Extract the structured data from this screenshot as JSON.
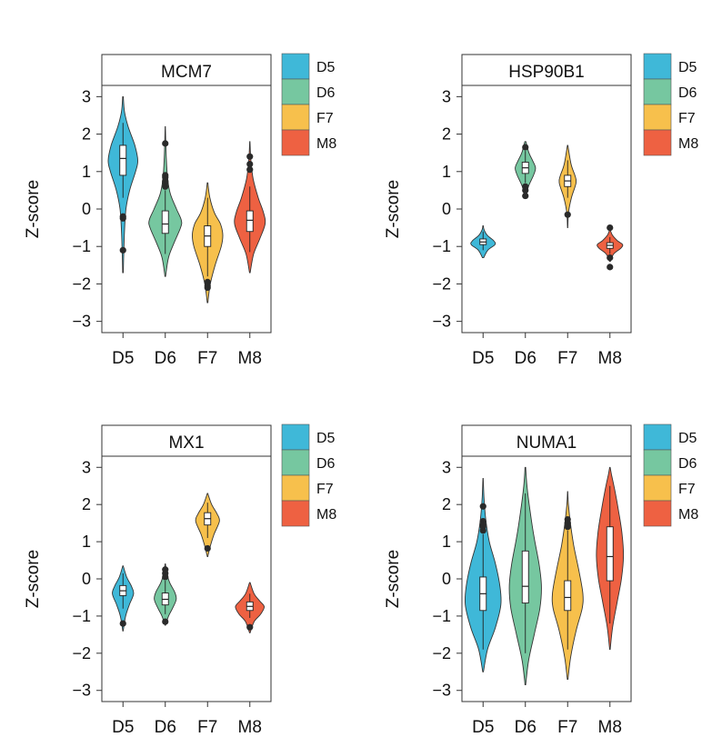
{
  "colors": {
    "D5": "#3fb8d8",
    "D6": "#76c7a0",
    "F7": "#f7c04c",
    "M8": "#ee6142",
    "outlier": "#2a2a2a"
  },
  "chart_data": [
    {
      "type": "violin",
      "title": "MCM7",
      "ylabel": "Z-score",
      "ylim": [
        -3.3,
        3.3
      ],
      "yticks": [
        3,
        2,
        1,
        0,
        -1,
        -2,
        -3
      ],
      "ytick_labels": [
        "3",
        "2",
        "1",
        "0",
        "−1",
        "−2",
        "−3"
      ],
      "categories": [
        "D5",
        "D6",
        "F7",
        "M8"
      ],
      "legend": [
        "D5",
        "D6",
        "F7",
        "M8"
      ],
      "series": [
        {
          "name": "D5",
          "min": -1.7,
          "max": 3.0,
          "width": 0.35,
          "density": [
            [
              -1.7,
              0.02
            ],
            [
              -1.2,
              0.05
            ],
            [
              -0.6,
              0.1
            ],
            [
              0,
              0.2
            ],
            [
              0.5,
              0.45
            ],
            [
              1,
              0.85
            ],
            [
              1.3,
              1
            ],
            [
              1.7,
              0.8
            ],
            [
              2.2,
              0.35
            ],
            [
              2.6,
              0.1
            ],
            [
              3.0,
              0.02
            ]
          ],
          "q1": 0.9,
          "median": 1.35,
          "q3": 1.7,
          "wmin": 0.3,
          "wmax": 2.3,
          "outliers": [
            -0.2,
            -0.25,
            -1.1
          ]
        },
        {
          "name": "D6",
          "min": -1.8,
          "max": 2.2,
          "width": 0.38,
          "density": [
            [
              -1.8,
              0.02
            ],
            [
              -1.3,
              0.2
            ],
            [
              -0.9,
              0.55
            ],
            [
              -0.5,
              0.95
            ],
            [
              -0.3,
              1
            ],
            [
              0,
              0.7
            ],
            [
              0.4,
              0.32
            ],
            [
              0.8,
              0.15
            ],
            [
              1.3,
              0.07
            ],
            [
              1.8,
              0.03
            ],
            [
              2.2,
              0.01
            ]
          ],
          "q1": -0.65,
          "median": -0.4,
          "q3": -0.05,
          "wmin": -1.2,
          "wmax": 0.5,
          "outliers": [
            0.6,
            0.7,
            0.75,
            0.85,
            0.9,
            1.75
          ]
        },
        {
          "name": "F7",
          "min": -2.5,
          "max": 0.7,
          "width": 0.36,
          "density": [
            [
              -2.5,
              0.02
            ],
            [
              -2.0,
              0.18
            ],
            [
              -1.5,
              0.5
            ],
            [
              -1.0,
              0.9
            ],
            [
              -0.7,
              1
            ],
            [
              -0.4,
              0.85
            ],
            [
              -0.1,
              0.45
            ],
            [
              0.3,
              0.15
            ],
            [
              0.7,
              0.02
            ]
          ],
          "q1": -1.0,
          "median": -0.72,
          "q3": -0.45,
          "wmin": -1.8,
          "wmax": 0.3,
          "outliers": [
            -1.95,
            -2.05,
            -2.1
          ]
        },
        {
          "name": "M8",
          "min": -1.7,
          "max": 1.8,
          "width": 0.36,
          "density": [
            [
              -1.7,
              0.02
            ],
            [
              -1.2,
              0.25
            ],
            [
              -0.8,
              0.65
            ],
            [
              -0.4,
              1
            ],
            [
              -0.1,
              0.9
            ],
            [
              0.3,
              0.55
            ],
            [
              0.8,
              0.22
            ],
            [
              1.3,
              0.07
            ],
            [
              1.8,
              0.01
            ]
          ],
          "q1": -0.6,
          "median": -0.3,
          "q3": -0.05,
          "wmin": -1.15,
          "wmax": 0.6,
          "outliers": [
            1.05,
            1.2,
            1.4
          ]
        }
      ]
    },
    {
      "type": "violin",
      "title": "HSP90B1",
      "ylabel": "Z-score",
      "ylim": [
        -3.3,
        3.3
      ],
      "yticks": [
        3,
        2,
        1,
        0,
        -1,
        -2,
        -3
      ],
      "ytick_labels": [
        "3",
        "2",
        "1",
        "0",
        "−1",
        "−2",
        "−3"
      ],
      "categories": [
        "D5",
        "D6",
        "F7",
        "M8"
      ],
      "legend": [
        "D5",
        "D6",
        "F7",
        "M8"
      ],
      "series": [
        {
          "name": "D5",
          "min": -1.3,
          "max": -0.45,
          "width": 0.28,
          "density": [
            [
              -1.3,
              0.05
            ],
            [
              -1.1,
              0.4
            ],
            [
              -0.95,
              1
            ],
            [
              -0.85,
              0.9
            ],
            [
              -0.7,
              0.35
            ],
            [
              -0.55,
              0.08
            ],
            [
              -0.45,
              0.02
            ]
          ],
          "q1": -0.95,
          "median": -0.88,
          "q3": -0.8,
          "wmin": -1.1,
          "wmax": -0.6,
          "outliers": []
        },
        {
          "name": "D6",
          "min": 0.3,
          "max": 1.8,
          "width": 0.24,
          "density": [
            [
              0.3,
              0.05
            ],
            [
              0.6,
              0.3
            ],
            [
              0.9,
              0.8
            ],
            [
              1.1,
              1
            ],
            [
              1.3,
              0.7
            ],
            [
              1.5,
              0.35
            ],
            [
              1.8,
              0.05
            ]
          ],
          "q1": 0.95,
          "median": 1.1,
          "q3": 1.25,
          "wmin": 0.7,
          "wmax": 1.55,
          "outliers": [
            0.35,
            0.5,
            0.6,
            1.65
          ]
        },
        {
          "name": "F7",
          "min": -0.5,
          "max": 1.7,
          "width": 0.2,
          "density": [
            [
              -0.5,
              0.02
            ],
            [
              -0.1,
              0.1
            ],
            [
              0.3,
              0.45
            ],
            [
              0.7,
              1
            ],
            [
              0.9,
              0.85
            ],
            [
              1.2,
              0.4
            ],
            [
              1.7,
              0.03
            ]
          ],
          "q1": 0.6,
          "median": 0.75,
          "q3": 0.9,
          "wmin": 0.3,
          "wmax": 1.3,
          "outliers": [
            -0.15
          ]
        },
        {
          "name": "M8",
          "min": -1.4,
          "max": -0.55,
          "width": 0.3,
          "density": [
            [
              -1.4,
              0.03
            ],
            [
              -1.2,
              0.3
            ],
            [
              -1.05,
              0.85
            ],
            [
              -0.95,
              1
            ],
            [
              -0.85,
              0.6
            ],
            [
              -0.7,
              0.2
            ],
            [
              -0.55,
              0.02
            ]
          ],
          "q1": -1.05,
          "median": -0.97,
          "q3": -0.9,
          "wmin": -1.2,
          "wmax": -0.75,
          "outliers": [
            -0.5,
            -1.3,
            -1.55
          ]
        }
      ]
    },
    {
      "type": "violin",
      "title": "MX1",
      "ylabel": "Z-score",
      "ylim": [
        -3.3,
        3.3
      ],
      "yticks": [
        3,
        2,
        1,
        0,
        -1,
        -2,
        -3
      ],
      "ytick_labels": [
        "3",
        "2",
        "1",
        "0",
        "−1",
        "−2",
        "−3"
      ],
      "categories": [
        "D5",
        "D6",
        "F7",
        "M8"
      ],
      "legend": [
        "D5",
        "D6",
        "F7",
        "M8"
      ],
      "series": [
        {
          "name": "D5",
          "min": -1.4,
          "max": 0.35,
          "width": 0.25,
          "density": [
            [
              -1.4,
              0.02
            ],
            [
              -1.0,
              0.25
            ],
            [
              -0.7,
              0.6
            ],
            [
              -0.4,
              1
            ],
            [
              -0.2,
              0.8
            ],
            [
              0.05,
              0.35
            ],
            [
              0.35,
              0.02
            ]
          ],
          "q1": -0.45,
          "median": -0.32,
          "q3": -0.18,
          "wmin": -0.8,
          "wmax": 0.15,
          "outliers": [
            -1.2
          ]
        },
        {
          "name": "D6",
          "min": -1.25,
          "max": 0.4,
          "width": 0.26,
          "density": [
            [
              -1.25,
              0.02
            ],
            [
              -1.0,
              0.3
            ],
            [
              -0.8,
              0.65
            ],
            [
              -0.55,
              1
            ],
            [
              -0.35,
              0.85
            ],
            [
              -0.1,
              0.4
            ],
            [
              0.2,
              0.1
            ],
            [
              0.4,
              0.02
            ]
          ],
          "q1": -0.7,
          "median": -0.55,
          "q3": -0.38,
          "wmin": -0.95,
          "wmax": -0.05,
          "outliers": [
            0.05,
            0.15,
            0.25,
            -1.15
          ]
        },
        {
          "name": "F7",
          "min": 0.6,
          "max": 2.3,
          "width": 0.28,
          "density": [
            [
              0.6,
              0.02
            ],
            [
              0.9,
              0.25
            ],
            [
              1.2,
              0.55
            ],
            [
              1.55,
              1
            ],
            [
              1.75,
              0.8
            ],
            [
              2.0,
              0.35
            ],
            [
              2.3,
              0.02
            ]
          ],
          "q1": 1.45,
          "median": 1.62,
          "q3": 1.78,
          "wmin": 1.1,
          "wmax": 2.05,
          "outliers": [
            0.82
          ]
        },
        {
          "name": "M8",
          "min": -1.45,
          "max": -0.1,
          "width": 0.34,
          "density": [
            [
              -1.45,
              0.02
            ],
            [
              -1.15,
              0.3
            ],
            [
              -0.95,
              0.75
            ],
            [
              -0.75,
              1
            ],
            [
              -0.6,
              0.7
            ],
            [
              -0.4,
              0.3
            ],
            [
              -0.1,
              0.02
            ]
          ],
          "q1": -0.85,
          "median": -0.74,
          "q3": -0.62,
          "wmin": -1.05,
          "wmax": -0.4,
          "outliers": [
            -1.3
          ]
        }
      ]
    },
    {
      "type": "violin",
      "title": "NUMA1",
      "ylabel": "Z-score",
      "ylim": [
        -3.3,
        3.3
      ],
      "yticks": [
        3,
        2,
        1,
        0,
        -1,
        -2,
        -3
      ],
      "ytick_labels": [
        "3",
        "2",
        "1",
        "0",
        "−1",
        "−2",
        "−3"
      ],
      "categories": [
        "D5",
        "D6",
        "F7",
        "M8"
      ],
      "legend": [
        "D5",
        "D6",
        "F7",
        "M8"
      ],
      "series": [
        {
          "name": "D5",
          "min": -2.5,
          "max": 2.7,
          "width": 0.42,
          "density": [
            [
              -2.5,
              0.02
            ],
            [
              -1.9,
              0.25
            ],
            [
              -1.3,
              0.7
            ],
            [
              -0.7,
              1
            ],
            [
              -0.2,
              0.95
            ],
            [
              0.4,
              0.7
            ],
            [
              1.0,
              0.35
            ],
            [
              1.6,
              0.15
            ],
            [
              2.2,
              0.05
            ],
            [
              2.7,
              0.01
            ]
          ],
          "q1": -0.85,
          "median": -0.4,
          "q3": 0.05,
          "wmin": -1.9,
          "wmax": 1.2,
          "outliers": [
            1.3,
            1.4,
            1.45,
            1.55,
            1.95
          ]
        },
        {
          "name": "D6",
          "min": -2.85,
          "max": 3.0,
          "width": 0.38,
          "density": [
            [
              -2.85,
              0.02
            ],
            [
              -2.2,
              0.2
            ],
            [
              -1.5,
              0.55
            ],
            [
              -0.8,
              0.9
            ],
            [
              -0.2,
              1
            ],
            [
              0.4,
              0.85
            ],
            [
              1.1,
              0.55
            ],
            [
              1.8,
              0.3
            ],
            [
              2.5,
              0.1
            ],
            [
              3.0,
              0.02
            ]
          ],
          "q1": -0.65,
          "median": -0.2,
          "q3": 0.75,
          "wmin": -2.0,
          "wmax": 2.3,
          "outliers": []
        },
        {
          "name": "F7",
          "min": -2.7,
          "max": 2.35,
          "width": 0.36,
          "density": [
            [
              -2.7,
              0.02
            ],
            [
              -2.1,
              0.2
            ],
            [
              -1.4,
              0.55
            ],
            [
              -0.8,
              0.95
            ],
            [
              -0.4,
              1
            ],
            [
              0.2,
              0.75
            ],
            [
              0.9,
              0.4
            ],
            [
              1.5,
              0.18
            ],
            [
              2.0,
              0.05
            ],
            [
              2.35,
              0.01
            ]
          ],
          "q1": -0.85,
          "median": -0.5,
          "q3": -0.05,
          "wmin": -1.9,
          "wmax": 1.3,
          "outliers": [
            1.4,
            1.5,
            1.6
          ]
        },
        {
          "name": "M8",
          "min": -1.9,
          "max": 3.0,
          "width": 0.32,
          "density": [
            [
              -1.9,
              0.02
            ],
            [
              -1.3,
              0.2
            ],
            [
              -0.6,
              0.55
            ],
            [
              0,
              0.85
            ],
            [
              0.6,
              1
            ],
            [
              1.2,
              0.9
            ],
            [
              1.8,
              0.65
            ],
            [
              2.4,
              0.35
            ],
            [
              2.8,
              0.12
            ],
            [
              3.0,
              0.02
            ]
          ],
          "q1": -0.05,
          "median": 0.6,
          "q3": 1.4,
          "wmin": -1.2,
          "wmax": 2.5,
          "outliers": []
        }
      ]
    }
  ]
}
